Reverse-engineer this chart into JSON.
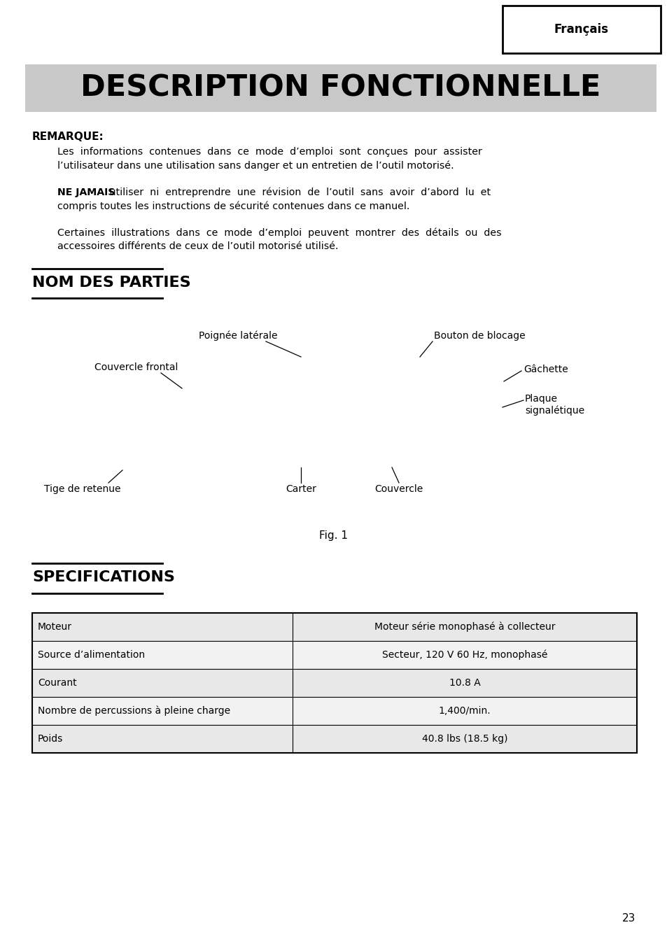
{
  "page_background": "#ffffff",
  "header_tab_text": "Français",
  "main_title": "DESCRIPTION FONCTIONNELLE",
  "main_title_bg": "#c8c8c8",
  "remarque_label": "REMARQUE:",
  "ne_jamais_bold": "NE JAMAIS",
  "nom_des_parties": "NOM DES PARTIES",
  "fig_label": "Fig. 1",
  "specifications_title": "SPECIFICATIONS",
  "table_data": [
    [
      "Moteur",
      "Moteur série monophasé à collecteur"
    ],
    [
      "Source d’alimentation",
      "Secteur, 120 V 60 Hz, monophasé"
    ],
    [
      "Courant",
      "10.8 A"
    ],
    [
      "Nombre de percussions à pleine charge",
      "1,400/min."
    ],
    [
      "Poids",
      "40.8 lbs (18.5 kg)"
    ]
  ],
  "table_row_colors": [
    "#e8e8e8",
    "#f2f2f2",
    "#e8e8e8",
    "#f2f2f2",
    "#e8e8e8"
  ],
  "page_number": "23"
}
